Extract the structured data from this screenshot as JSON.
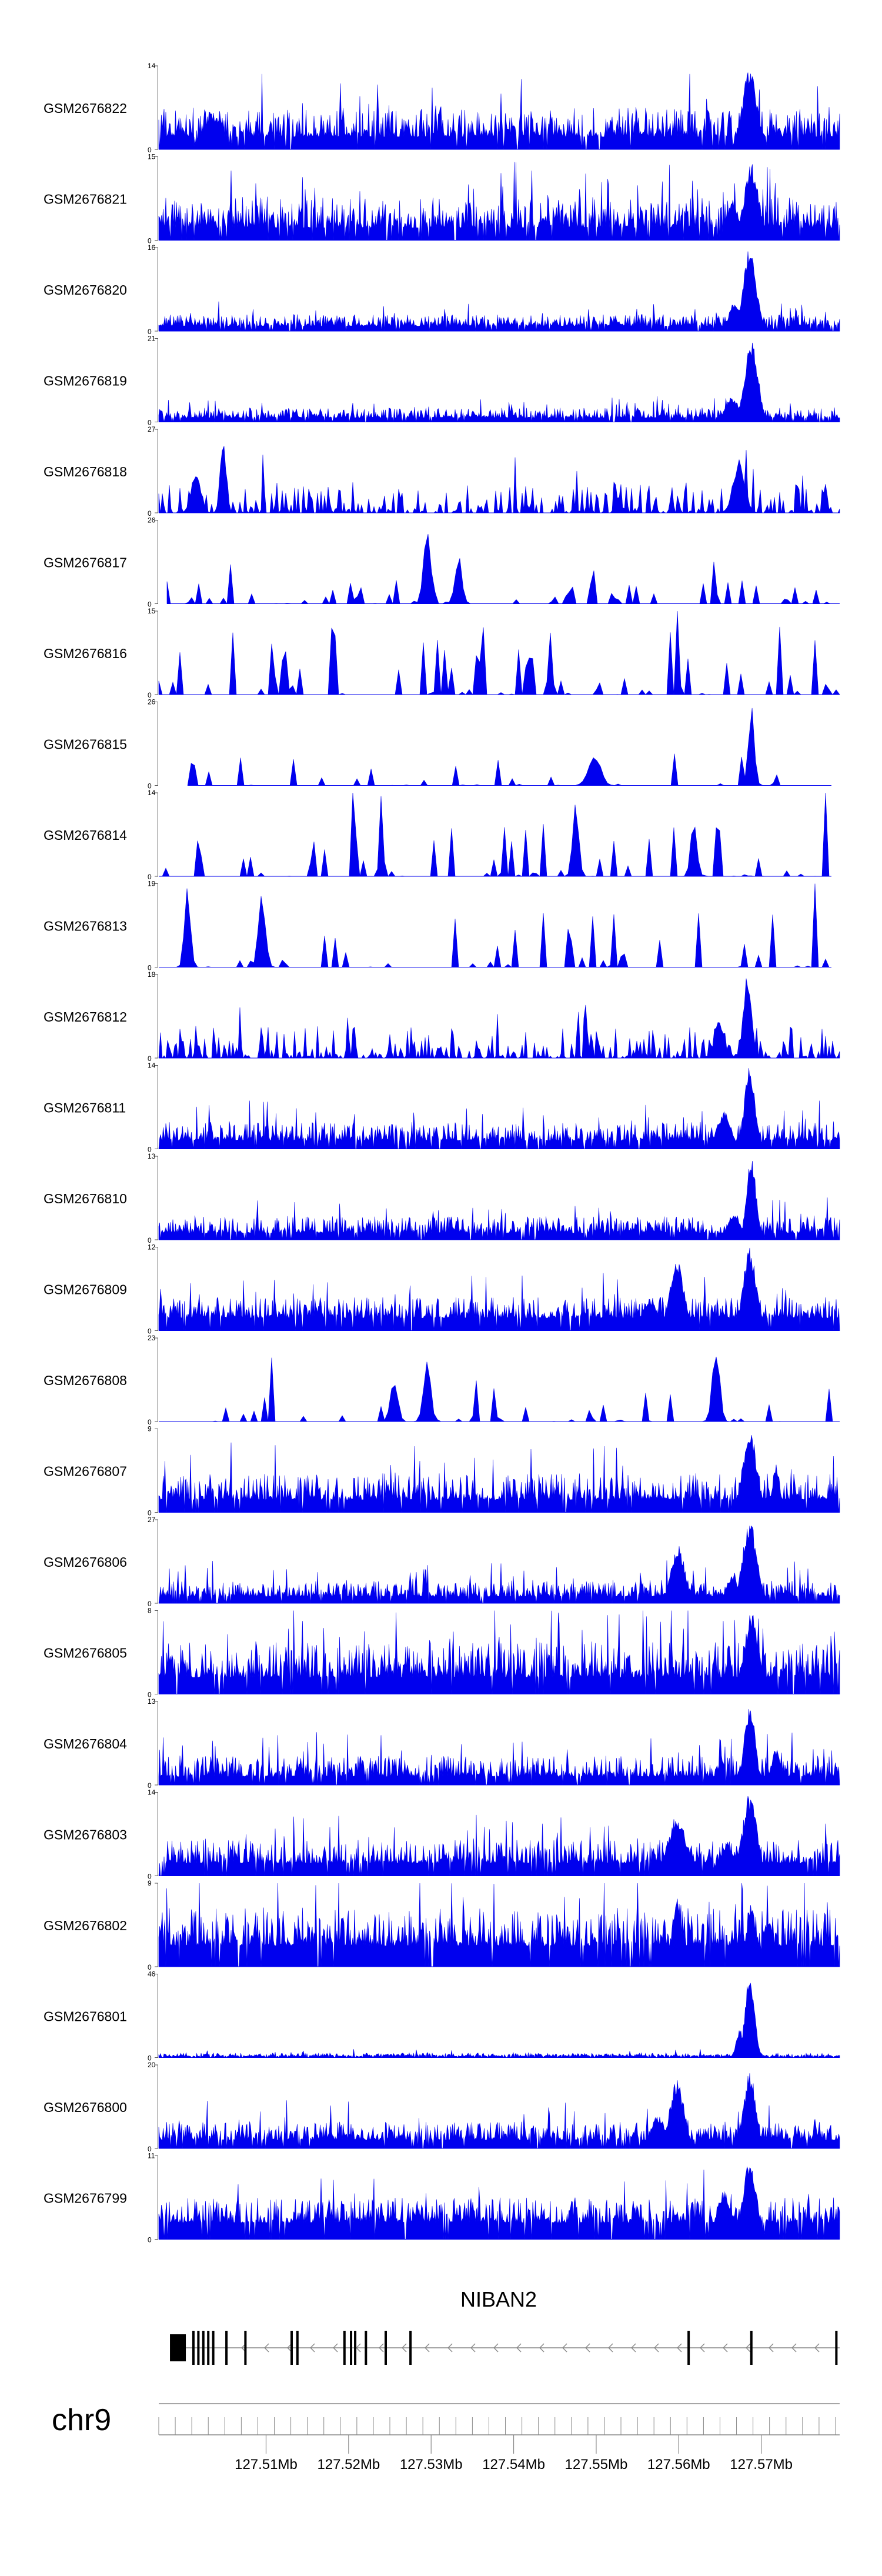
{
  "chart_data": {
    "type": "area",
    "title": "",
    "xlabel": "",
    "ylabel": "",
    "series_color": "#0000ee",
    "chromosome": "chr9",
    "xlim_mb": [
      127.497,
      127.5795
    ],
    "x_ticks": [
      "127.51Mb",
      "127.52Mb",
      "127.53Mb",
      "127.54Mb",
      "127.55Mb",
      "127.56Mb",
      "127.57Mb"
    ],
    "x_tick_values_mb": [
      127.51,
      127.52,
      127.53,
      127.54,
      127.55,
      127.56,
      127.57
    ],
    "tracks": [
      {
        "name": "GSM2676822",
        "ymin": 0,
        "ymax": 14,
        "seed": 22,
        "density": 0.93,
        "baseline": 0.15,
        "noise": 0.35,
        "peaks": [
          [
            127.5686,
            1.0,
            0.0012
          ],
          [
            127.5035,
            0.45,
            0.0015
          ]
        ]
      },
      {
        "name": "GSM2676821",
        "ymin": 0,
        "ymax": 15,
        "seed": 21,
        "density": 0.93,
        "baseline": 0.15,
        "noise": 0.36,
        "peaks": [
          [
            127.5688,
            0.95,
            0.0012
          ],
          [
            127.5665,
            0.5,
            0.001
          ]
        ]
      },
      {
        "name": "GSM2676820",
        "ymin": 0,
        "ymax": 16,
        "seed": 20,
        "density": 0.92,
        "baseline": 0.06,
        "noise": 0.14,
        "peaks": [
          [
            127.5686,
            1.0,
            0.0011
          ],
          [
            127.5668,
            0.35,
            0.001
          ]
        ]
      },
      {
        "name": "GSM2676819",
        "ymin": 0,
        "ymax": 21,
        "seed": 19,
        "density": 0.92,
        "baseline": 0.05,
        "noise": 0.12,
        "peaks": [
          [
            127.5688,
            1.0,
            0.0011
          ],
          [
            127.5665,
            0.3,
            0.0012
          ]
        ]
      },
      {
        "name": "GSM2676818",
        "ymin": 0,
        "ymax": 27,
        "seed": 18,
        "density": 0.6,
        "baseline": 0.02,
        "noise": 0.35,
        "peaks": [
          [
            127.5048,
            1.0,
            0.0005
          ],
          [
            127.5673,
            0.65,
            0.001
          ],
          [
            127.5015,
            0.5,
            0.0008
          ]
        ]
      },
      {
        "name": "GSM2676817",
        "ymin": 0,
        "ymax": 26,
        "seed": 17,
        "density": 0.38,
        "baseline": 0.0,
        "noise": 0.3,
        "start_mb": 127.498,
        "peaks": [
          [
            127.5295,
            1.0,
            0.0006
          ],
          [
            127.5333,
            0.6,
            0.0006
          ]
        ]
      },
      {
        "name": "GSM2676816",
        "ymin": 0,
        "ymax": 15,
        "seed": 16,
        "density": 0.36,
        "baseline": 0.0,
        "noise": 0.85,
        "peaks": []
      },
      {
        "name": "GSM2676815",
        "ymin": 0,
        "ymax": 26,
        "seed": 15,
        "density": 0.14,
        "baseline": 0.0,
        "noise": 0.45,
        "start_mb": 127.5005,
        "end_mb": 127.5785,
        "peaks": [
          [
            127.5688,
            1.0,
            0.0005
          ],
          [
            127.5498,
            0.4,
            0.001
          ]
        ]
      },
      {
        "name": "GSM2676814",
        "ymin": 0,
        "ymax": 14,
        "seed": 14,
        "density": 0.3,
        "baseline": 0.0,
        "noise": 0.65,
        "end_mb": 127.5785,
        "peaks": [
          [
            127.5475,
            1.0,
            0.0005
          ],
          [
            127.5618,
            0.75,
            0.0005
          ]
        ]
      },
      {
        "name": "GSM2676813",
        "ymin": 0,
        "ymax": 19,
        "seed": 13,
        "density": 0.2,
        "baseline": 0.0,
        "noise": 0.7,
        "end_mb": 127.5785,
        "peaks": [
          [
            127.5005,
            1.0,
            0.0005
          ],
          [
            127.5095,
            0.9,
            0.0006
          ]
        ]
      },
      {
        "name": "GSM2676812",
        "ymin": 0,
        "ymax": 18,
        "seed": 12,
        "density": 0.62,
        "baseline": 0.02,
        "noise": 0.35,
        "peaks": [
          [
            127.5683,
            1.0,
            0.0007
          ],
          [
            127.5649,
            0.45,
            0.0008
          ]
        ]
      },
      {
        "name": "GSM2676811",
        "ymin": 0,
        "ymax": 14,
        "seed": 11,
        "density": 0.92,
        "baseline": 0.1,
        "noise": 0.22,
        "peaks": [
          [
            127.5686,
            1.0,
            0.0009
          ],
          [
            127.5655,
            0.45,
            0.0012
          ]
        ]
      },
      {
        "name": "GSM2676810",
        "ymin": 0,
        "ymax": 13,
        "seed": 10,
        "density": 0.92,
        "baseline": 0.08,
        "noise": 0.2,
        "peaks": [
          [
            127.5688,
            1.0,
            0.0008
          ],
          [
            127.5667,
            0.35,
            0.001
          ]
        ]
      },
      {
        "name": "GSM2676809",
        "ymin": 0,
        "ymax": 12,
        "seed": 9,
        "density": 0.93,
        "baseline": 0.15,
        "noise": 0.25,
        "peaks": [
          [
            127.5686,
            1.0,
            0.0011
          ],
          [
            127.5598,
            0.85,
            0.0012
          ],
          [
            127.5565,
            0.4,
            0.0014
          ]
        ]
      },
      {
        "name": "GSM2676808",
        "ymin": 0,
        "ymax": 23,
        "seed": 8,
        "density": 0.16,
        "baseline": 0.0,
        "noise": 0.5,
        "peaks": [
          [
            127.5645,
            1.0,
            0.0006
          ],
          [
            127.5295,
            0.8,
            0.0006
          ],
          [
            127.5255,
            0.6,
            0.0006
          ]
        ]
      },
      {
        "name": "GSM2676807",
        "ymin": 0,
        "ymax": 9,
        "seed": 7,
        "density": 0.93,
        "baseline": 0.15,
        "noise": 0.32,
        "peaks": [
          [
            127.5686,
            1.0,
            0.0012
          ],
          [
            127.5718,
            0.6,
            0.0006
          ]
        ]
      },
      {
        "name": "GSM2676806",
        "ymin": 0,
        "ymax": 27,
        "seed": 6,
        "density": 0.93,
        "baseline": 0.08,
        "noise": 0.2,
        "peaks": [
          [
            127.5686,
            1.0,
            0.0012
          ],
          [
            127.5599,
            0.7,
            0.0012
          ],
          [
            127.5665,
            0.35,
            0.001
          ]
        ]
      },
      {
        "name": "GSM2676805",
        "ymin": 0,
        "ymax": 8,
        "seed": 5,
        "density": 0.93,
        "baseline": 0.2,
        "noise": 0.42,
        "peaks": [
          [
            127.5688,
            1.0,
            0.0012
          ]
        ]
      },
      {
        "name": "GSM2676804",
        "ymin": 0,
        "ymax": 13,
        "seed": 4,
        "density": 0.93,
        "baseline": 0.1,
        "noise": 0.25,
        "peaks": [
          [
            127.5686,
            1.0,
            0.0009
          ],
          [
            127.5718,
            0.45,
            0.0008
          ]
        ]
      },
      {
        "name": "GSM2676803",
        "ymin": 0,
        "ymax": 14,
        "seed": 3,
        "density": 0.93,
        "baseline": 0.15,
        "noise": 0.28,
        "peaks": [
          [
            127.5686,
            1.0,
            0.0012
          ],
          [
            127.5598,
            0.7,
            0.0016
          ],
          [
            127.5658,
            0.4,
            0.0012
          ]
        ]
      },
      {
        "name": "GSM2676802",
        "ymin": 0,
        "ymax": 9,
        "seed": 2,
        "density": 0.93,
        "baseline": 0.25,
        "noise": 0.45,
        "peaks": [
          [
            127.5598,
            0.85,
            0.0008
          ],
          [
            127.5688,
            0.75,
            0.0008
          ],
          [
            127.5708,
            0.6,
            0.0008
          ]
        ]
      },
      {
        "name": "GSM2676801",
        "ymin": 0,
        "ymax": 46,
        "seed": 1,
        "density": 0.9,
        "baseline": 0.015,
        "noise": 0.04,
        "peaks": [
          [
            127.5686,
            1.0,
            0.0008
          ],
          [
            127.5674,
            0.35,
            0.0006
          ]
        ]
      },
      {
        "name": "GSM2676800",
        "ymin": 0,
        "ymax": 20,
        "seed": 100,
        "density": 0.93,
        "baseline": 0.1,
        "noise": 0.22,
        "peaks": [
          [
            127.5686,
            0.95,
            0.001
          ],
          [
            127.5598,
            0.85,
            0.0012
          ],
          [
            127.5575,
            0.4,
            0.0012
          ]
        ]
      },
      {
        "name": "GSM2676799",
        "ymin": 0,
        "ymax": 11,
        "seed": 99,
        "density": 0.93,
        "baseline": 0.2,
        "noise": 0.3,
        "peaks": [
          [
            127.5686,
            1.0,
            0.0011
          ],
          [
            127.5655,
            0.6,
            0.0012
          ]
        ]
      }
    ],
    "gene": {
      "name": "NIBAN2",
      "strand": "-",
      "start_mb": 127.4985,
      "end_mb": 127.5795,
      "exons_mb": [
        127.4985,
        127.5,
        127.5012,
        127.5018,
        127.5024,
        127.503,
        127.5036,
        127.5052,
        127.5075,
        127.5131,
        127.5138,
        127.5195,
        127.5203,
        127.5208,
        127.5221,
        127.5245,
        127.5275,
        127.5612,
        127.5688,
        127.5791
      ]
    }
  }
}
